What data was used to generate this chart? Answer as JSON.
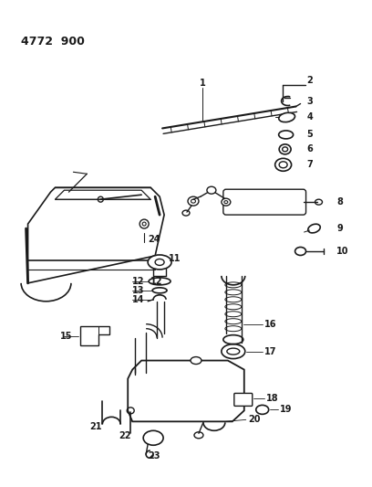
{
  "title": "4772  900",
  "bg_color": "#ffffff",
  "line_color": "#1a1a1a",
  "fig_width": 4.08,
  "fig_height": 5.33,
  "dpi": 100
}
